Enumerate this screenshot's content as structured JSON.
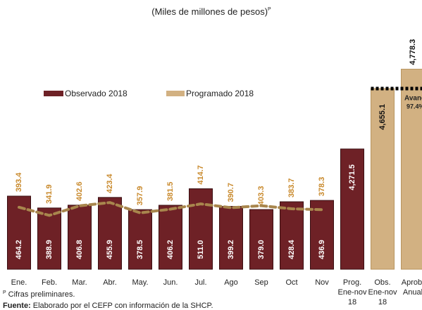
{
  "chart_data": {
    "type": "bar",
    "title": "(Miles de millones de pesos)",
    "title_mark": "P",
    "categories": [
      "Ene.",
      "Feb.",
      "Mar.",
      "Abr.",
      "May.",
      "Jun.",
      "Jul.",
      "Ago",
      "Sep",
      "Oct",
      "Nov",
      "Prog. Ene-nov 18",
      "Obs. Ene-nov 18",
      "Aprob. Anual"
    ],
    "series": [
      {
        "name": "Observado 2018",
        "color": "#6e2126",
        "values": [
          464.2,
          388.9,
          406.8,
          455.9,
          378.5,
          406.2,
          511.0,
          399.2,
          379.0,
          428.4,
          436.9,
          null,
          null,
          null
        ],
        "value_labels": [
          "464.2",
          "388.9",
          "406.8",
          "455.9",
          "378.5",
          "406.2",
          "511.0",
          "399.2",
          "379.0",
          "428.4",
          "436.9",
          null,
          null,
          null
        ]
      },
      {
        "name": "Programado 2018",
        "color": "#d2b182",
        "line_color": "#a8864d",
        "label_color": "#c98a2d",
        "values": [
          393.4,
          341.9,
          402.6,
          423.4,
          357.9,
          381.5,
          414.7,
          390.7,
          403.3,
          383.7,
          378.3,
          null,
          null,
          null
        ]
      }
    ],
    "totals": {
      "axis": "y2",
      "values": [
        null,
        null,
        null,
        null,
        null,
        null,
        null,
        null,
        null,
        null,
        null,
        4271.5,
        4655.1,
        4778.3
      ],
      "value_labels": [
        null,
        null,
        null,
        null,
        null,
        null,
        null,
        null,
        null,
        null,
        null,
        "4,271.5",
        "4,655.1",
        "4,778.3"
      ],
      "colors": [
        null,
        null,
        null,
        null,
        null,
        null,
        null,
        null,
        null,
        null,
        null,
        "#6e2126",
        "#d2b182",
        "#d2b182"
      ]
    },
    "ylim": [
      0,
      1272
    ],
    "y2lim": [
      3508,
      4780
    ],
    "annotation": {
      "label": "Avance",
      "value": "97.4%"
    },
    "footnote": {
      "mark": "P",
      "text": "Cifras preliminares."
    },
    "source": {
      "label": "Fuente:",
      "text": "Elaborado por el CEFP con información de la SHCP."
    }
  }
}
